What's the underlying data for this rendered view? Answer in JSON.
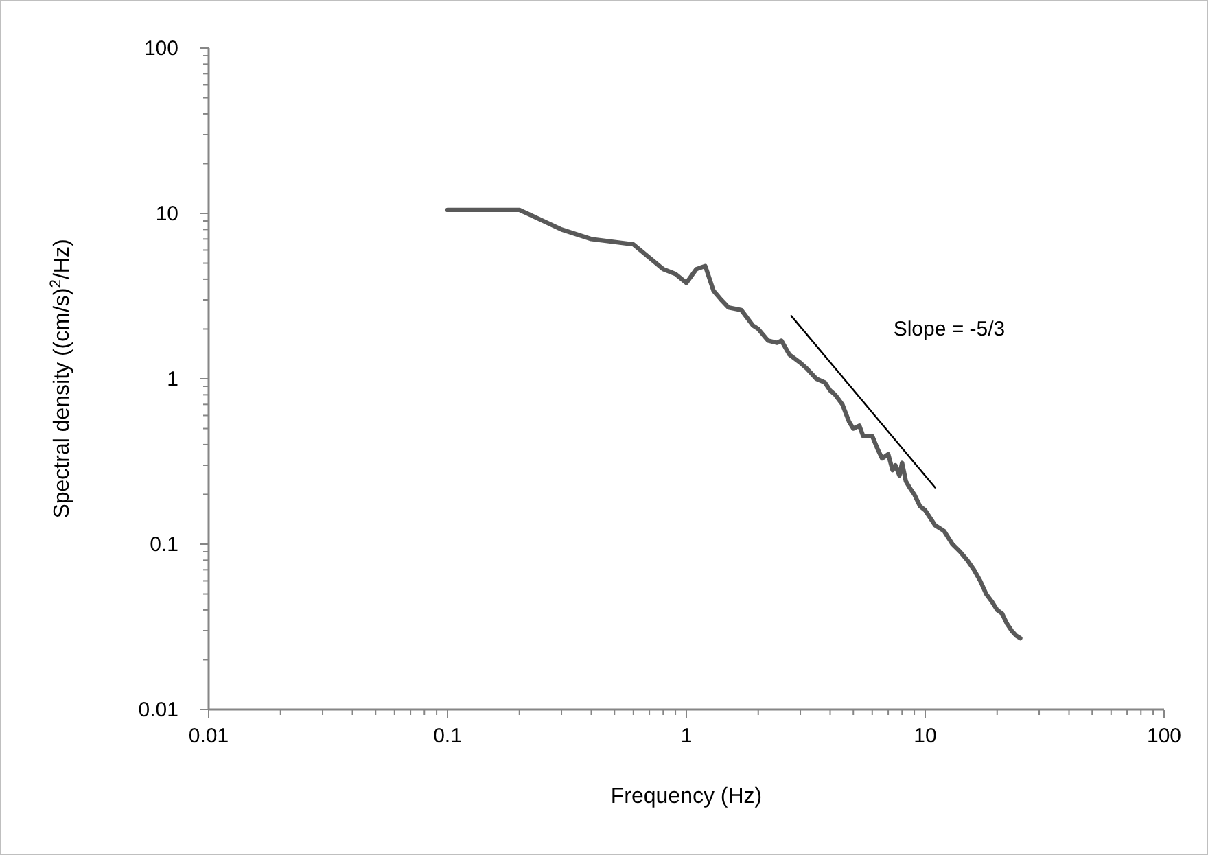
{
  "chart_data": {
    "type": "line",
    "xlabel": "Frequency (Hz)",
    "ylabel": "Spectral density ((cm/s)$^{2}$/Hz)",
    "log": "xy",
    "grid": false,
    "marker": "none",
    "line_style": "solid",
    "xlim": [
      0.01,
      100
    ],
    "ylim": [
      0.01,
      100
    ],
    "xticks": [
      0.01,
      {
        "value": 0.02,
        "label": null
      },
      {
        "value": 0.03,
        "label": null
      },
      {
        "value": 0.04,
        "label": null
      },
      {
        "value": 0.05,
        "label": null
      },
      {
        "value": 0.06,
        "label": null
      },
      {
        "value": 0.07,
        "label": null
      },
      {
        "value": 0.08,
        "label": null
      },
      {
        "value": 0.09,
        "label": null
      },
      0.1,
      {
        "value": 0.2,
        "label": null
      },
      {
        "value": 0.3,
        "label": null
      },
      {
        "value": 0.4,
        "label": null
      },
      {
        "value": 0.5,
        "label": null
      },
      {
        "value": 0.6,
        "label": null
      },
      {
        "value": 0.7,
        "label": null
      },
      {
        "value": 0.8,
        "label": null
      },
      {
        "value": 0.9,
        "label": null
      },
      1,
      {
        "value": 2,
        "label": null
      },
      {
        "value": 3,
        "label": null
      },
      {
        "value": 4,
        "label": null
      },
      {
        "value": 5,
        "label": null
      },
      {
        "value": 6,
        "label": null
      },
      {
        "value": 7,
        "label": null
      },
      {
        "value": 8,
        "label": null
      },
      {
        "value": 9,
        "label": null
      },
      10,
      {
        "value": 20,
        "label": null
      },
      {
        "value": 30,
        "label": null
      },
      {
        "value": 40,
        "label": null
      },
      {
        "value": 50,
        "label": null
      },
      {
        "value": 60,
        "label": null
      },
      {
        "value": 70,
        "label": null
      },
      {
        "value": 80,
        "label": null
      },
      {
        "value": 90,
        "label": null
      },
      100
    ],
    "yticks": [
      0.01,
      {
        "value": 0.02,
        "label": null
      },
      {
        "value": 0.03,
        "label": null
      },
      {
        "value": 0.04,
        "label": null
      },
      {
        "value": 0.05,
        "label": null
      },
      {
        "value": 0.06,
        "label": null
      },
      {
        "value": 0.07,
        "label": null
      },
      {
        "value": 0.08,
        "label": null
      },
      {
        "value": 0.09,
        "label": null
      },
      0.1,
      {
        "value": 0.2,
        "label": null
      },
      {
        "value": 0.3,
        "label": null
      },
      {
        "value": 0.4,
        "label": null
      },
      {
        "value": 0.5,
        "label": null
      },
      {
        "value": 0.6,
        "label": null
      },
      {
        "value": 0.7,
        "label": null
      },
      {
        "value": 0.8,
        "label": null
      },
      {
        "value": 0.9,
        "label": null
      },
      1,
      {
        "value": 2,
        "label": null
      },
      {
        "value": 3,
        "label": null
      },
      {
        "value": 4,
        "label": null
      },
      {
        "value": 5,
        "label": null
      },
      {
        "value": 6,
        "label": null
      },
      {
        "value": 7,
        "label": null
      },
      {
        "value": 8,
        "label": null
      },
      {
        "value": 9,
        "label": null
      },
      10,
      {
        "value": 20,
        "label": null
      },
      {
        "value": 30,
        "label": null
      },
      {
        "value": 40,
        "label": null
      },
      {
        "value": 50,
        "label": null
      },
      {
        "value": 60,
        "label": null
      },
      {
        "value": 70,
        "label": null
      },
      {
        "value": 80,
        "label": null
      },
      {
        "value": 90,
        "label": null
      },
      100
    ],
    "series": [
      {
        "color": "#595959",
        "x": [
          0.1,
          0.2,
          0.3,
          0.4,
          0.6,
          0.8,
          0.9,
          1.0,
          1.1,
          1.2,
          1.3,
          1.4,
          1.5,
          1.7,
          1.9,
          2.0,
          2.2,
          2.4,
          2.5,
          2.7,
          3.0,
          3.2,
          3.5,
          3.8,
          4.0,
          4.2,
          4.5,
          4.8,
          5.0,
          5.3,
          5.5,
          6.0,
          6.3,
          6.6,
          7.0,
          7.3,
          7.5,
          7.8,
          8.0,
          8.3,
          8.6,
          9.0,
          9.5,
          10,
          11,
          12,
          13,
          14,
          15,
          16,
          17,
          18,
          19,
          20,
          21,
          22,
          23,
          24,
          25
        ],
        "values": [
          10.5,
          10.5,
          8,
          7,
          6.5,
          4.6,
          4.3,
          3.8,
          4.6,
          4.8,
          3.4,
          3.0,
          2.7,
          2.6,
          2.1,
          2.0,
          1.7,
          1.65,
          1.7,
          1.4,
          1.25,
          1.15,
          1.0,
          0.95,
          0.85,
          0.8,
          0.7,
          0.55,
          0.5,
          0.52,
          0.45,
          0.45,
          0.38,
          0.33,
          0.35,
          0.28,
          0.3,
          0.26,
          0.31,
          0.24,
          0.22,
          0.2,
          0.17,
          0.16,
          0.13,
          0.12,
          0.1,
          0.09,
          0.08,
          0.07,
          0.06,
          0.05,
          0.045,
          0.04,
          0.038,
          0.033,
          0.03,
          0.028,
          0.027
        ]
      },
      {
        "color": "#000000",
        "x": [
          2.75,
          11
        ],
        "values": [
          2.4,
          0.22
        ]
      }
    ],
    "annotations": [
      "Slope = -5/3"
    ]
  }
}
